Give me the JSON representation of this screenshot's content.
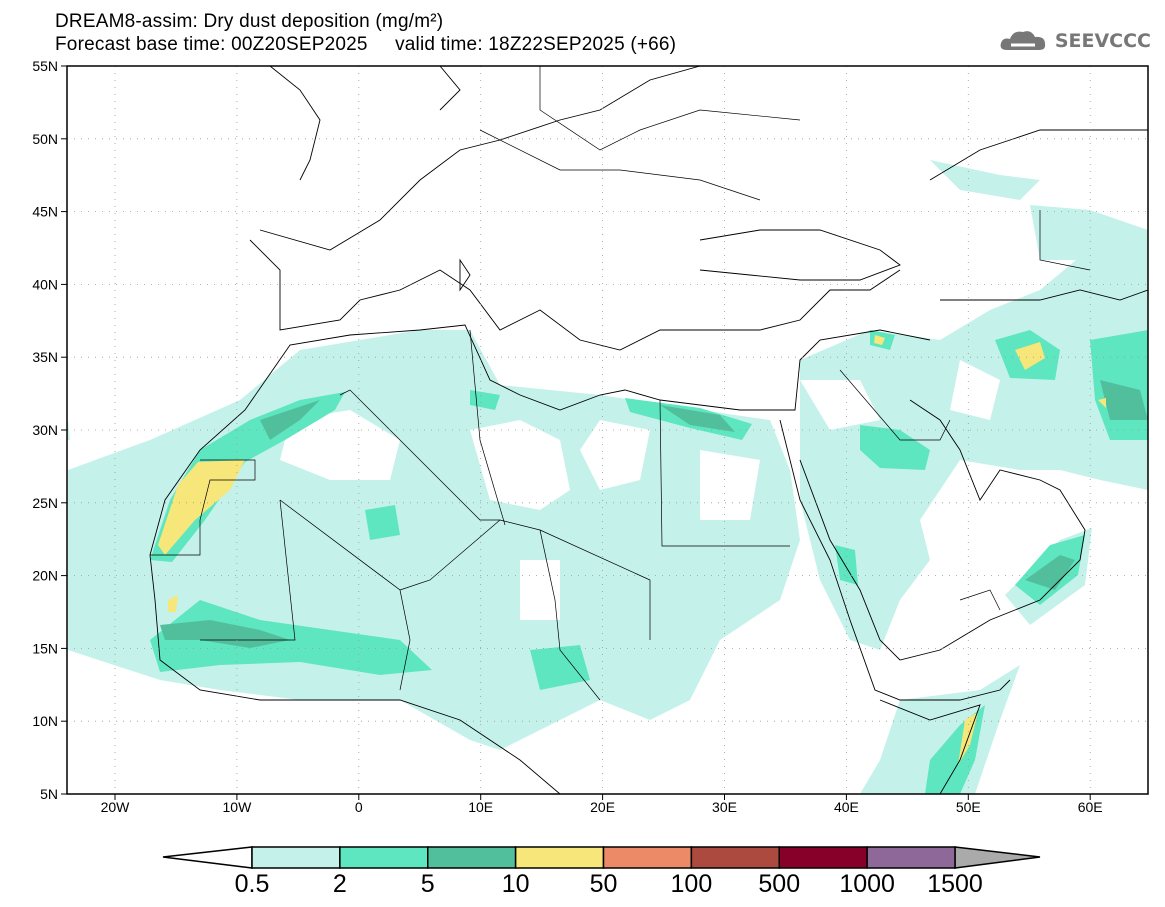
{
  "header": {
    "title": "DREAM8-assim: Dry dust deposition (mg/m²)",
    "subtitle": "Forecast base time: 00Z20SEP2025     valid time: 18Z22SEP2025 (+66)",
    "logo_text": "SEEVCCC"
  },
  "map": {
    "lon_labels": [
      "20W",
      "10W",
      "0",
      "10E",
      "20E",
      "30E",
      "40E",
      "50E",
      "60E"
    ],
    "lat_labels": [
      "55N",
      "50N",
      "45N",
      "40N",
      "35N",
      "30N",
      "25N",
      "20N",
      "15N",
      "10N",
      "5N"
    ]
  },
  "colorbar": {
    "labels": [
      "0.5",
      "2",
      "5",
      "10",
      "50",
      "100",
      "500",
      "1000",
      "1500"
    ],
    "colors": [
      "#c4f2ea",
      "#5ee6c0",
      "#52bf9c",
      "#f7e67a",
      "#ec8a68",
      "#ad4a40",
      "#870029",
      "#8e6898"
    ],
    "under_color": "#ffffff",
    "over_color": "#aaaaaa"
  }
}
